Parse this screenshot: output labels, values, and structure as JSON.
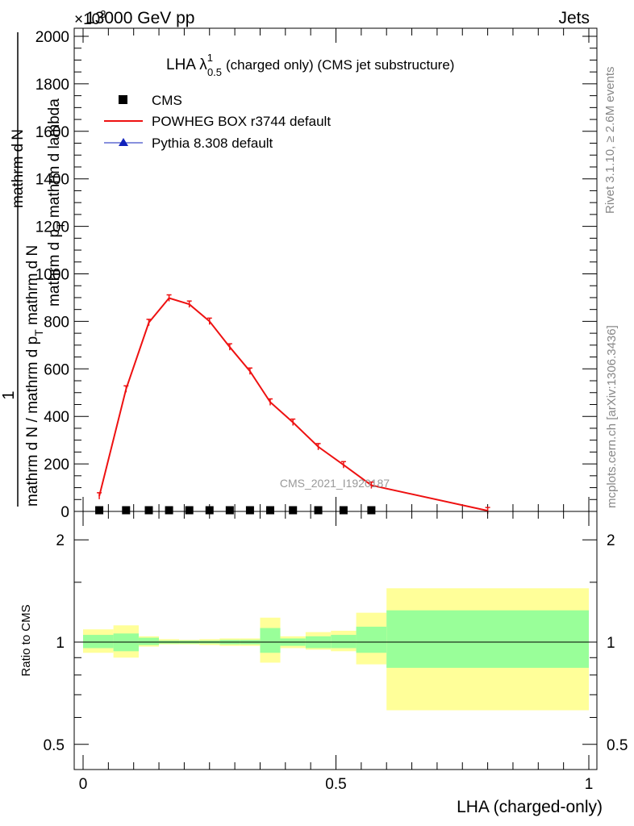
{
  "header": {
    "energy_label": "13000 GeV pp",
    "process_label": "Jets",
    "exponent_label": "×10",
    "exponent_power": "3"
  },
  "side_texts": {
    "rivet": "Rivet 3.1.10, ≥ 2.6M events",
    "mcplots": "mcplots.cern.ch [arXiv:1306.3436]"
  },
  "watermark": "CMS_2021_I1920187",
  "chart_data": [
    {
      "type": "line",
      "title": "LHA λ",
      "title_sup": "1",
      "title_sub": "0.5",
      "title_suffix": "(charged only) (CMS jet substructure)",
      "ylabel_numerator": "1",
      "ylabel_parts": [
        "mathrm d N / mathrm d p",
        "T",
        " mathrm d N"
      ],
      "ylabel_top": "mathrm d",
      "ylabel_top2": "N",
      "ylabel_denominator": "mathrm d p",
      "ylabel_den_sub": "T",
      "ylabel_den_rest": " mathrm d lambda",
      "xlim": [
        0,
        1
      ],
      "ylim": [
        0,
        2000
      ],
      "y_ticks": [
        0,
        200,
        400,
        600,
        800,
        1000,
        1200,
        1400,
        1600,
        1800,
        2000
      ],
      "legend": [
        {
          "label": "CMS",
          "color": "#000000",
          "marker": "square"
        },
        {
          "label": "POWHEG BOX r3744 default",
          "color": "#ee1111",
          "marker": "line"
        },
        {
          "label": "Pythia 8.308 default",
          "color": "#1122bb",
          "marker": "triangle"
        }
      ],
      "legend_position": "top-left",
      "series": [
        {
          "name": "CMS",
          "color": "#000000",
          "x": [
            0.032,
            0.085,
            0.13,
            0.17,
            0.21,
            0.25,
            0.29,
            0.33,
            0.37,
            0.415,
            0.465,
            0.515,
            0.57
          ],
          "values": [
            5,
            5,
            5,
            5,
            5,
            5,
            5,
            5,
            5,
            5,
            5,
            5,
            5
          ]
        },
        {
          "name": "POWHEG BOX r3744 default",
          "color": "#ee1111",
          "x": [
            0.032,
            0.085,
            0.13,
            0.17,
            0.21,
            0.25,
            0.29,
            0.33,
            0.37,
            0.415,
            0.465,
            0.515,
            0.57,
            0.8
          ],
          "values": [
            65,
            515,
            795,
            898,
            872,
            800,
            692,
            590,
            460,
            375,
            272,
            196,
            110,
            3
          ]
        }
      ]
    },
    {
      "type": "area",
      "ylabel": "Ratio to CMS",
      "xlabel": "LHA (charged-only)",
      "xlim": [
        0,
        1
      ],
      "ylim": [
        0.4,
        2.3
      ],
      "y_ticks": [
        0.5,
        1,
        2
      ],
      "y_tick_labels": [
        "0.5",
        "1",
        "2"
      ],
      "x_ticks": [
        0,
        0.5,
        1
      ],
      "x_tick_labels": [
        "0",
        "0.5",
        "1"
      ],
      "colors": {
        "inner_band": "#99ff99",
        "outer_band": "#ffff99",
        "ratio_line": "#000000"
      },
      "bins": [
        {
          "lo": 0.0,
          "hi": 0.06,
          "inner": [
            0.96,
            1.05
          ],
          "outer": [
            0.93,
            1.09
          ]
        },
        {
          "lo": 0.06,
          "hi": 0.11,
          "inner": [
            0.94,
            1.06
          ],
          "outer": [
            0.9,
            1.12
          ]
        },
        {
          "lo": 0.11,
          "hi": 0.15,
          "inner": [
            0.98,
            1.03
          ],
          "outer": [
            0.97,
            1.04
          ]
        },
        {
          "lo": 0.15,
          "hi": 0.19,
          "inner": [
            0.99,
            1.01
          ],
          "outer": [
            0.985,
            1.02
          ]
        },
        {
          "lo": 0.19,
          "hi": 0.23,
          "inner": [
            0.99,
            1.01
          ],
          "outer": [
            0.985,
            1.015
          ]
        },
        {
          "lo": 0.23,
          "hi": 0.27,
          "inner": [
            0.99,
            1.01
          ],
          "outer": [
            0.98,
            1.02
          ]
        },
        {
          "lo": 0.27,
          "hi": 0.31,
          "inner": [
            0.985,
            1.015
          ],
          "outer": [
            0.975,
            1.025
          ]
        },
        {
          "lo": 0.31,
          "hi": 0.35,
          "inner": [
            0.985,
            1.015
          ],
          "outer": [
            0.975,
            1.025
          ]
        },
        {
          "lo": 0.35,
          "hi": 0.39,
          "inner": [
            0.93,
            1.1
          ],
          "outer": [
            0.87,
            1.18
          ]
        },
        {
          "lo": 0.39,
          "hi": 0.44,
          "inner": [
            0.975,
            1.025
          ],
          "outer": [
            0.96,
            1.04
          ]
        },
        {
          "lo": 0.44,
          "hi": 0.49,
          "inner": [
            0.96,
            1.04
          ],
          "outer": [
            0.95,
            1.07
          ]
        },
        {
          "lo": 0.49,
          "hi": 0.54,
          "inner": [
            0.96,
            1.05
          ],
          "outer": [
            0.94,
            1.08
          ]
        },
        {
          "lo": 0.54,
          "hi": 0.6,
          "inner": [
            0.93,
            1.11
          ],
          "outer": [
            0.86,
            1.22
          ]
        },
        {
          "lo": 0.6,
          "hi": 1.0,
          "inner": [
            0.84,
            1.24
          ],
          "outer": [
            0.63,
            1.44
          ]
        }
      ]
    }
  ]
}
